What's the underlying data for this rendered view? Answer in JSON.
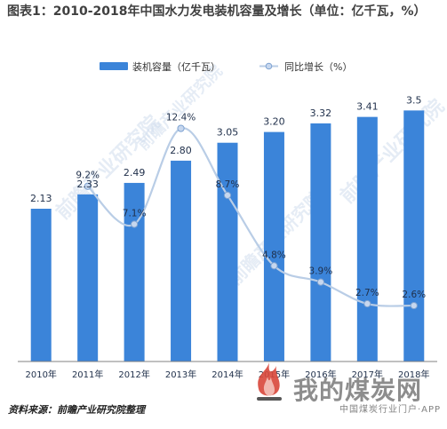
{
  "title": "图表1：2010-2018年中国水力发电装机容量及增长（单位：亿千瓦，%）",
  "source": "资料来源：前瞻产业研究院整理",
  "watermark": {
    "brand": "前瞻产业研究院",
    "site": "我的煤炭网",
    "site_sub": "中国煤炭行业门户·APP"
  },
  "colors": {
    "bar": "#3b84d9",
    "line": "#b9cde6",
    "marker": "#c7d7ee",
    "marker_border": "#7da2d1",
    "axis": "#808080",
    "text": "#1f2f4a"
  },
  "chart_data": {
    "type": "bar",
    "categories": [
      "2010年",
      "2011年",
      "2012年",
      "2013年",
      "2014年",
      "2015年",
      "2016年",
      "2017年",
      "2018年"
    ],
    "series": [
      {
        "name": "装机容量（亿千瓦）",
        "type": "bar",
        "values": [
          2.13,
          2.33,
          2.49,
          2.8,
          3.05,
          3.2,
          3.32,
          3.41,
          3.5
        ],
        "labels": [
          "2.13",
          "2.33",
          "2.49",
          "2.80",
          "3.05",
          "3.20",
          "3.32",
          "3.41",
          "3.5"
        ]
      },
      {
        "name": "同比增长（%）",
        "type": "line",
        "x": [
          "2011年",
          "2012年",
          "2013年",
          "2014年",
          "2015年",
          "2016年",
          "2017年",
          "2018年"
        ],
        "values": [
          9.2,
          7.1,
          12.4,
          8.7,
          4.8,
          3.9,
          2.7,
          2.6
        ],
        "labels": [
          "9.2%",
          "7.1%",
          "12.4%",
          "8.7%",
          "4.8%",
          "3.9%",
          "2.7%",
          "2.6%"
        ]
      }
    ],
    "legend": "top",
    "ylim_bar": [
      0,
      4
    ],
    "ylim_line": [
      0,
      14
    ],
    "grid": false
  }
}
